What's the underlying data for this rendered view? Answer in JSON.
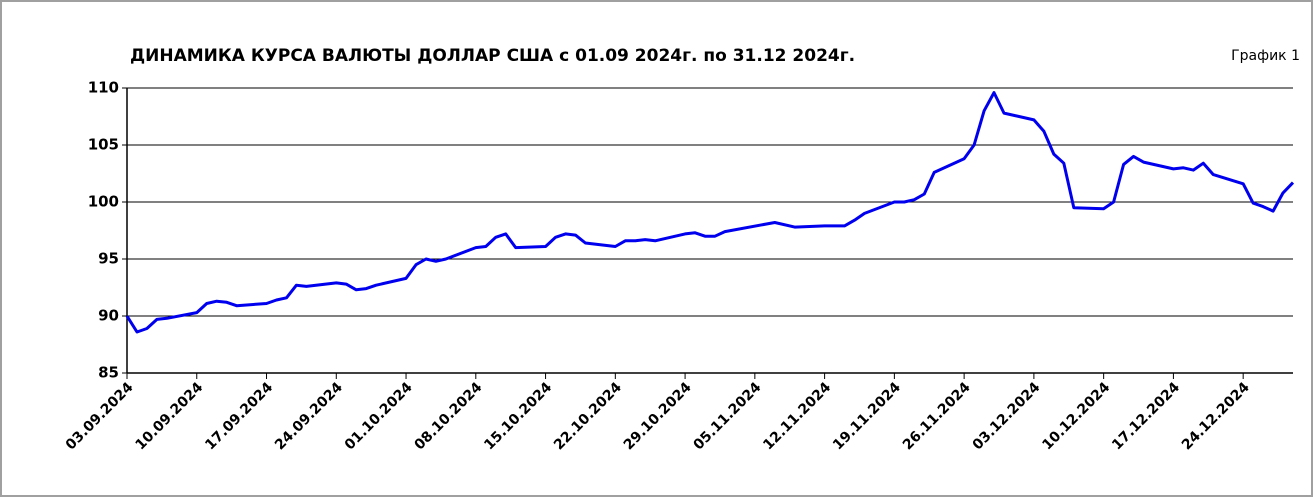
{
  "chart_data": {
    "type": "line",
    "title": "ДИНАМИКА КУРСА ВАЛЮТЫ ДОЛЛАР США с 01.09 2024г. по 31.12 2024г.",
    "annotation": "График 1",
    "x": [
      "03.09.2024",
      "04.09.2024",
      "05.09.2024",
      "06.09.2024",
      "07.09.2024",
      "10.09.2024",
      "11.09.2024",
      "12.09.2024",
      "13.09.2024",
      "14.09.2024",
      "17.09.2024",
      "18.09.2024",
      "19.09.2024",
      "20.09.2024",
      "21.09.2024",
      "24.09.2024",
      "25.09.2024",
      "26.09.2024",
      "27.09.2024",
      "28.09.2024",
      "01.10.2024",
      "02.10.2024",
      "03.10.2024",
      "04.10.2024",
      "05.10.2024",
      "08.10.2024",
      "09.10.2024",
      "10.10.2024",
      "11.10.2024",
      "12.10.2024",
      "15.10.2024",
      "16.10.2024",
      "17.10.2024",
      "18.10.2024",
      "19.10.2024",
      "22.10.2024",
      "23.10.2024",
      "24.10.2024",
      "25.10.2024",
      "26.10.2024",
      "29.10.2024",
      "30.10.2024",
      "31.10.2024",
      "01.11.2024",
      "02.11.2024",
      "07.11.2024",
      "09.11.2024",
      "12.11.2024",
      "13.11.2024",
      "14.11.2024",
      "15.11.2024",
      "16.11.2024",
      "19.11.2024",
      "20.11.2024",
      "21.11.2024",
      "22.11.2024",
      "23.11.2024",
      "26.11.2024",
      "27.11.2024",
      "28.11.2024",
      "29.11.2024",
      "30.11.2024",
      "03.12.2024",
      "04.12.2024",
      "05.12.2024",
      "06.12.2024",
      "07.12.2024",
      "10.12.2024",
      "11.12.2024",
      "12.12.2024",
      "13.12.2024",
      "14.12.2024",
      "17.12.2024",
      "18.12.2024",
      "19.12.2024",
      "20.12.2024",
      "21.12.2024",
      "24.12.2024",
      "25.12.2024",
      "26.12.2024",
      "27.12.2024",
      "28.12.2024",
      "29.12.2024"
    ],
    "series": [
      {
        "name": "USD",
        "color": "#0000ee",
        "values": [
          90.0,
          88.6,
          88.9,
          89.7,
          89.8,
          90.3,
          91.1,
          91.3,
          91.2,
          90.9,
          91.1,
          91.4,
          91.6,
          92.7,
          92.6,
          92.9,
          92.8,
          92.3,
          92.4,
          92.7,
          93.3,
          94.5,
          95.0,
          94.8,
          95.0,
          96.0,
          96.1,
          96.9,
          97.2,
          96.0,
          96.1,
          96.9,
          97.2,
          97.1,
          96.4,
          96.1,
          96.6,
          96.6,
          96.7,
          96.6,
          97.2,
          97.3,
          97.0,
          97.0,
          97.4,
          98.2,
          97.8,
          97.9,
          97.9,
          97.9,
          98.4,
          99.0,
          100.0,
          100.0,
          100.2,
          100.7,
          102.6,
          103.8,
          105.0,
          108.0,
          109.6,
          107.8,
          107.2,
          106.2,
          104.2,
          103.4,
          99.5,
          99.4,
          100.0,
          103.3,
          104.0,
          103.5,
          102.9,
          103.0,
          102.8,
          103.4,
          102.4,
          101.6,
          99.9,
          99.6,
          99.2,
          100.8,
          101.7
        ]
      }
    ],
    "xlim": [
      "03.09.2024",
      "29.12.2024"
    ],
    "xticks": [
      "03.09.2024",
      "10.09.2024",
      "17.09.2024",
      "24.09.2024",
      "01.10.2024",
      "08.10.2024",
      "15.10.2024",
      "22.10.2024",
      "29.10.2024",
      "05.11.2024",
      "12.11.2024",
      "19.11.2024",
      "26.11.2024",
      "03.12.2024",
      "10.12.2024",
      "17.12.2024",
      "24.12.2024"
    ],
    "ylim": [
      85,
      110
    ],
    "yticks": [
      85,
      90,
      95,
      100,
      105,
      110
    ],
    "grid": true
  }
}
